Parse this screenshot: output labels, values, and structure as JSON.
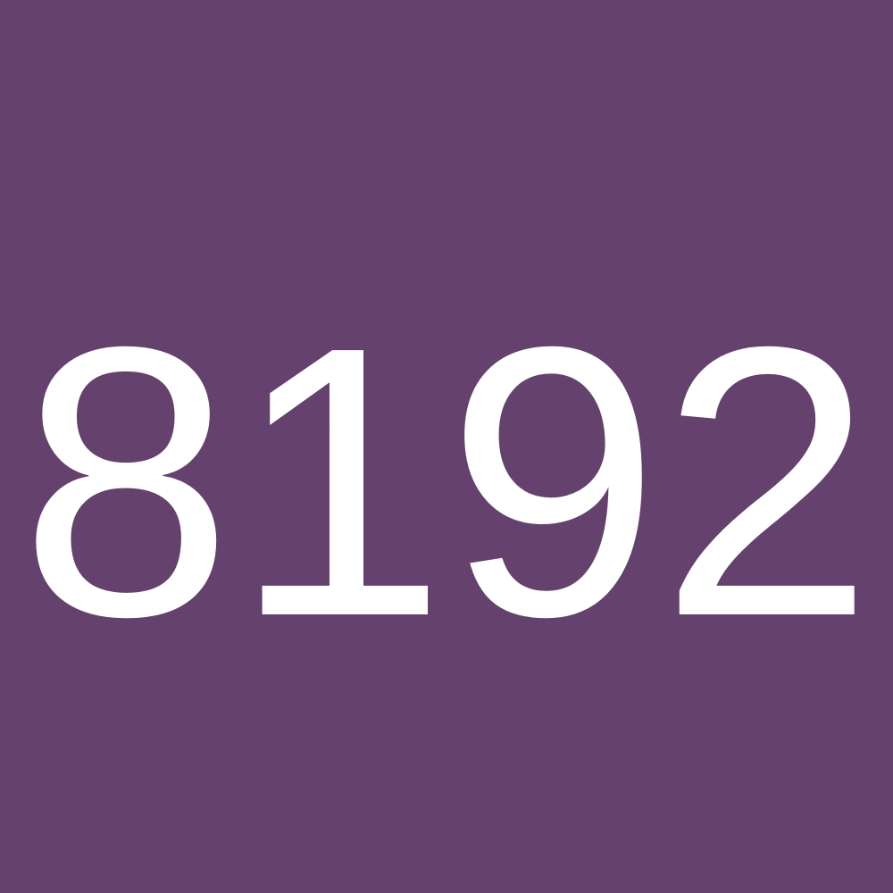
{
  "tile": {
    "value": "8192",
    "background_color": "#65426e",
    "text_color": "#ffffff"
  }
}
